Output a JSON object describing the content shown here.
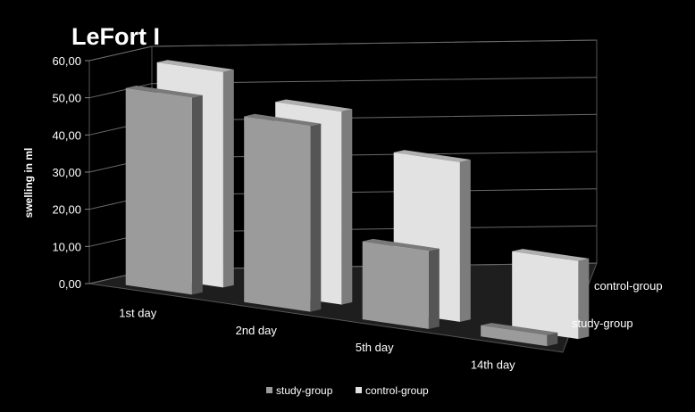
{
  "chart_data": {
    "type": "bar",
    "title": "LeFort I",
    "ylabel": "swelling in ml",
    "xlabel": "",
    "ylim": [
      0,
      60
    ],
    "y_ticks": [
      "0,00",
      "10,00",
      "20,00",
      "30,00",
      "40,00",
      "50,00",
      "60,00"
    ],
    "categories": [
      "1st day",
      "2nd day",
      "5th day",
      "14th day"
    ],
    "series": [
      {
        "name": "study-group",
        "values": [
          53,
          50,
          21,
          3
        ],
        "color": "#9b9b9b"
      },
      {
        "name": "control-group",
        "values": [
          58,
          52,
          43,
          21
        ],
        "color": "#e2e2e2"
      }
    ],
    "depth_labels": [
      "control-group",
      "study-group"
    ],
    "legend": {
      "placement": "bottom",
      "items": [
        "study-group",
        "control-group"
      ]
    },
    "grid": true,
    "background": "#000000"
  }
}
